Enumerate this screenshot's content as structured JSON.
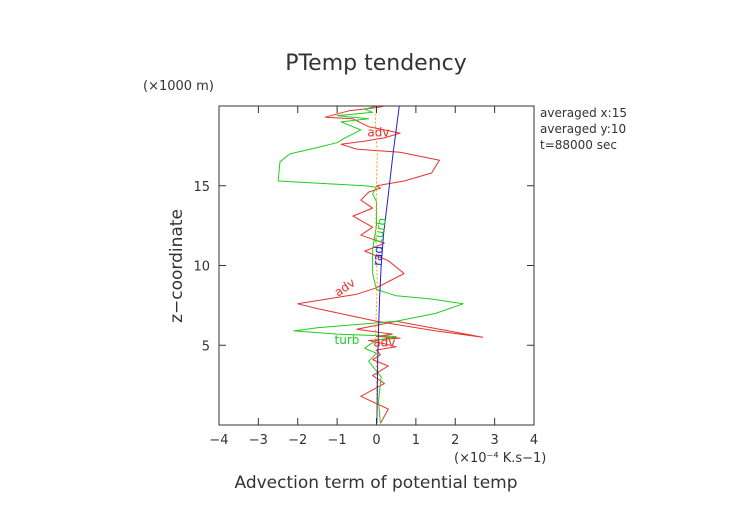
{
  "chart_data": {
    "type": "line",
    "title": "PTemp tendency",
    "y_scale_note": "(×1000 m)",
    "x_scale_note": "(×10⁻⁴ K.s−1)",
    "xlabel": "Advection term of potential temp",
    "ylabel": "z−coordinate",
    "xlim": [
      -4,
      4
    ],
    "ylim": [
      0,
      20
    ],
    "x_ticks": [
      -4,
      -3,
      -2,
      -1,
      0,
      1,
      2,
      3,
      4
    ],
    "y_ticks": [
      5,
      10,
      15
    ],
    "grid": false,
    "info": [
      "averaged  x:15",
      "averaged  y:10",
      "t=88000 sec"
    ],
    "colors": {
      "adv": "#e8312f",
      "turb": "#22cc22",
      "rad": "#2222cc",
      "orange": "#ff9900",
      "axis": "#333333"
    },
    "series": [
      {
        "name": "adv",
        "color": "#e8312f",
        "x": [
          0.1,
          0.3,
          -0.4,
          0.2,
          -0.1,
          0.3,
          -0.1,
          0.1,
          0.0,
          0.5,
          0.2,
          -0.2,
          0.6,
          0.0,
          0.4,
          -0.5,
          0.5,
          2.7,
          1.5,
          0.0,
          -1.5,
          -2.0,
          -0.5,
          0.0,
          0.7,
          0.3,
          -0.3,
          0.2,
          -0.4,
          -0.1,
          -0.6,
          -0.1,
          -0.4,
          -0.2,
          0.1,
          0.0,
          0.7,
          1.4,
          1.6,
          0.6,
          -0.5,
          -0.9,
          -0.3,
          0.2,
          0.6,
          -0.2,
          -0.6,
          -1.3,
          -0.7,
          0.0,
          0.2
        ],
        "y": [
          0.1,
          1.0,
          1.8,
          2.6,
          3.1,
          3.7,
          4.1,
          4.4,
          4.7,
          4.9,
          5.1,
          5.3,
          5.45,
          5.55,
          5.7,
          6.0,
          6.5,
          5.5,
          5.9,
          6.5,
          7.3,
          7.6,
          8.2,
          8.6,
          9.5,
          10.3,
          10.9,
          11.4,
          11.9,
          12.4,
          13.1,
          13.6,
          14.1,
          14.6,
          14.85,
          15.0,
          15.3,
          15.8,
          16.6,
          17.1,
          17.3,
          17.6,
          17.8,
          18.0,
          18.3,
          18.7,
          19.2,
          19.3,
          19.7,
          19.9,
          20.0
        ]
      },
      {
        "name": "turb",
        "color": "#22cc22",
        "x": [
          0.1,
          0.05,
          0.12,
          -0.2,
          0.0,
          -0.3,
          -0.2,
          0.0,
          0.5,
          0.1,
          -1.0,
          -2.1,
          -1.5,
          -0.5,
          0.5,
          1.5,
          2.2,
          1.4,
          0.5,
          0.0,
          -0.1,
          -0.1,
          0.0,
          0.0,
          -0.1,
          0.0,
          -0.3,
          -1.0,
          -2.5,
          -2.45,
          -2.2,
          -1.5,
          -1.0,
          -0.8,
          -0.4,
          -0.9,
          -0.2,
          -1.0,
          -0.1,
          -0.3,
          0.0
        ],
        "y": [
          0.1,
          1.5,
          3.0,
          4.0,
          4.5,
          4.8,
          5.0,
          5.3,
          5.55,
          5.6,
          5.7,
          5.9,
          6.1,
          6.3,
          6.5,
          7.0,
          7.6,
          7.9,
          8.1,
          8.5,
          9.5,
          11.0,
          12.5,
          14.0,
          14.5,
          14.9,
          15.0,
          15.1,
          15.3,
          16.5,
          17.0,
          17.4,
          17.7,
          18.0,
          18.5,
          19.0,
          19.2,
          19.4,
          19.6,
          19.8,
          20.0
        ]
      },
      {
        "name": "rad",
        "color": "#2222cc",
        "x": [
          0.01,
          0.02,
          0.03,
          0.05,
          0.08,
          0.12,
          0.18,
          0.28,
          0.42,
          0.58
        ],
        "y": [
          0.1,
          2.0,
          4.0,
          6.0,
          8.0,
          10.0,
          12.0,
          14.0,
          17.0,
          20.0
        ]
      },
      {
        "name": "",
        "color": "#ff9900",
        "x": [
          0.0,
          0.0,
          -0.02,
          0.02,
          -0.02,
          0.0,
          0.02,
          -0.03,
          0.0
        ],
        "y": [
          0.1,
          3.0,
          6.0,
          9.0,
          12.0,
          15.0,
          17.0,
          19.0,
          20.0
        ]
      }
    ],
    "annotations": [
      {
        "text": "adv",
        "x": 0.05,
        "y": 18.3,
        "color": "#e8312f",
        "rotate": 0
      },
      {
        "text": "adv",
        "x": -0.8,
        "y": 8.6,
        "color": "#e8312f",
        "rotate": -35
      },
      {
        "text": "adv",
        "x": 0.2,
        "y": 5.15,
        "color": "#e8312f",
        "rotate": 0
      },
      {
        "text": "turb",
        "x": -0.75,
        "y": 5.3,
        "color": "#22cc22",
        "rotate": 0
      },
      {
        "text": "turb",
        "x": 0.1,
        "y": 12.2,
        "color": "#22cc22",
        "rotate": -80
      },
      {
        "text": "rad",
        "x": 0.05,
        "y": 10.6,
        "color": "#2222cc",
        "rotate": -85
      }
    ]
  }
}
